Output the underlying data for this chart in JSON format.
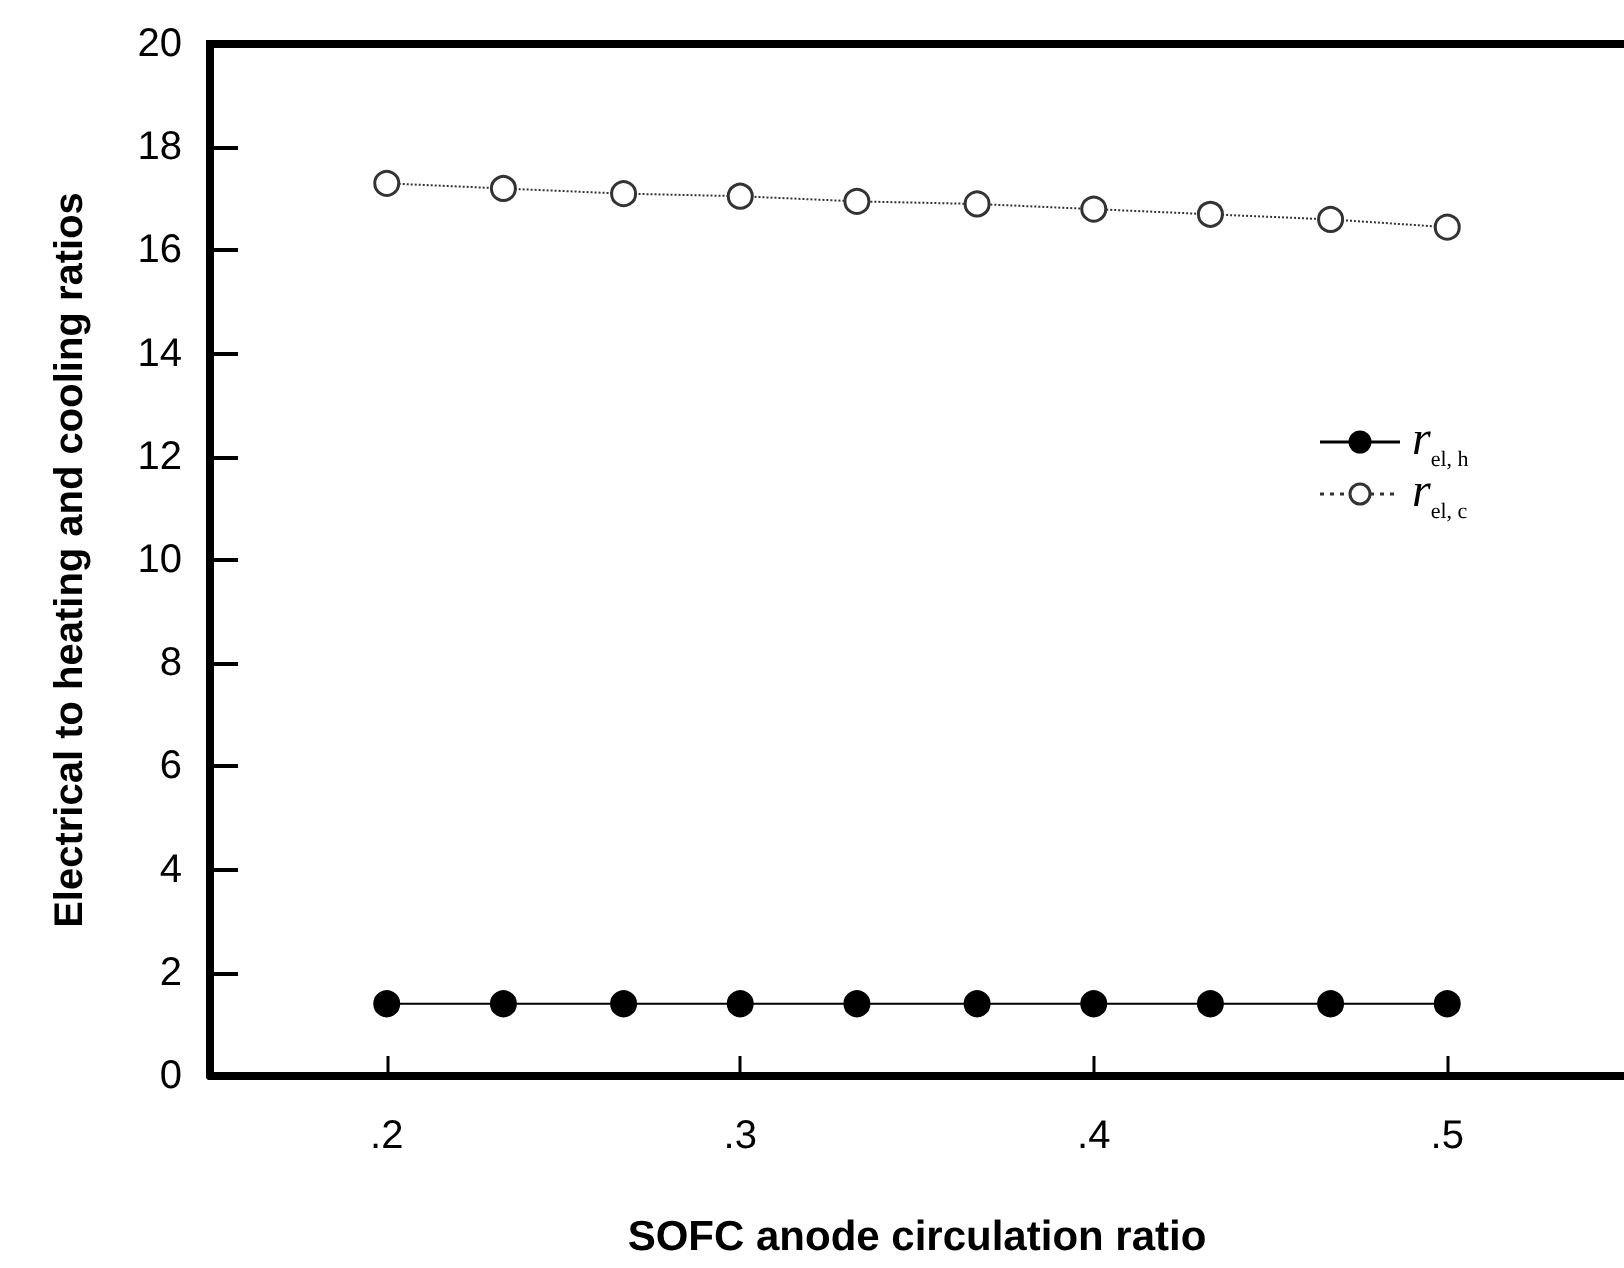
{
  "chart_data": {
    "type": "line",
    "xlabel": "SOFC anode circulation ratio",
    "ylabel": "Electrical to heating and cooling ratios",
    "x": [
      0.2,
      0.233,
      0.267,
      0.3,
      0.333,
      0.367,
      0.4,
      0.433,
      0.467,
      0.5
    ],
    "series": [
      {
        "name": "r$_{el, h}$",
        "color": "#000000",
        "marker": "circle",
        "line_style": "solid",
        "values": [
          1.4,
          1.4,
          1.4,
          1.4,
          1.4,
          1.4,
          1.4,
          1.4,
          1.4,
          1.4
        ]
      },
      {
        "name": "r$_{el, c}$",
        "color": "#333333",
        "marker": "circle",
        "line_style": "dotted",
        "values": [
          17.3,
          17.2,
          17.1,
          17.05,
          16.95,
          16.9,
          16.8,
          16.7,
          16.6,
          16.45
        ]
      }
    ],
    "xlim": [
      0.15,
      0.55
    ],
    "xticks": [
      {
        "value": 0.2,
        "label": ".2"
      },
      {
        "value": 0.3,
        "label": ".3"
      },
      {
        "value": 0.4,
        "label": ".4"
      },
      {
        "value": 0.5,
        "label": ".5"
      }
    ],
    "ylim": [
      0,
      20
    ],
    "yticks": [
      0,
      2,
      4,
      6,
      8,
      10,
      12,
      14,
      16,
      18,
      20
    ],
    "grid": false,
    "legend": "right"
  }
}
